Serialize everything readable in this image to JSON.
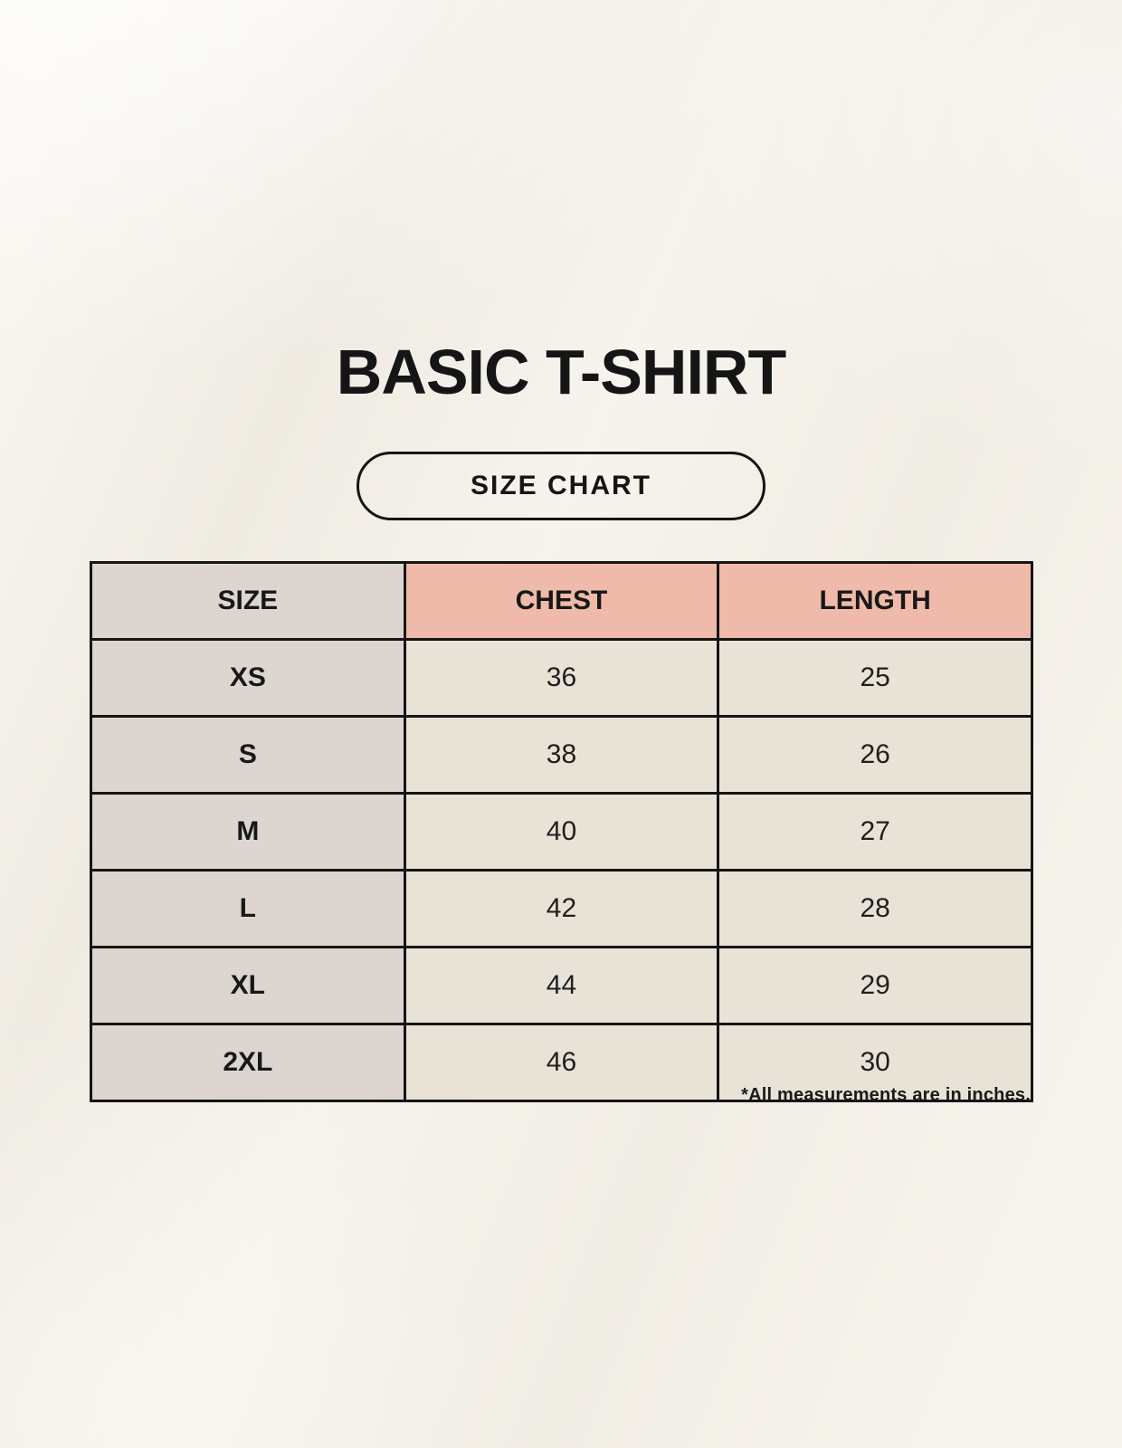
{
  "header": {
    "title": "BASIC T-SHIRT",
    "badge_label": "SIZE CHART"
  },
  "table": {
    "columns": [
      "SIZE",
      "CHEST",
      "LENGTH"
    ],
    "rows": [
      {
        "size": "XS",
        "chest": "36",
        "length": "25"
      },
      {
        "size": "S",
        "chest": "38",
        "length": "26"
      },
      {
        "size": "M",
        "chest": "40",
        "length": "27"
      },
      {
        "size": "L",
        "chest": "42",
        "length": "28"
      },
      {
        "size": "XL",
        "chest": "44",
        "length": "29"
      },
      {
        "size": "2XL",
        "chest": "46",
        "length": "30"
      }
    ]
  },
  "footnote": "*All measurements are in inches.",
  "colors": {
    "background": "#f3f0e9",
    "accent_header": "#efbaa9",
    "size_column": "#ddd6d0",
    "data_cell": "#e9e2d6",
    "border": "#151515",
    "text": "#181818"
  },
  "chart_data": {
    "type": "table",
    "title": "BASIC T-SHIRT",
    "subtitle": "SIZE CHART",
    "columns": [
      "SIZE",
      "CHEST",
      "LENGTH"
    ],
    "rows": [
      [
        "XS",
        36,
        25
      ],
      [
        "S",
        38,
        26
      ],
      [
        "M",
        40,
        27
      ],
      [
        "L",
        42,
        28
      ],
      [
        "XL",
        44,
        29
      ],
      [
        "2XL",
        46,
        30
      ]
    ],
    "units": "inches",
    "note": "*All measurements are in inches."
  }
}
